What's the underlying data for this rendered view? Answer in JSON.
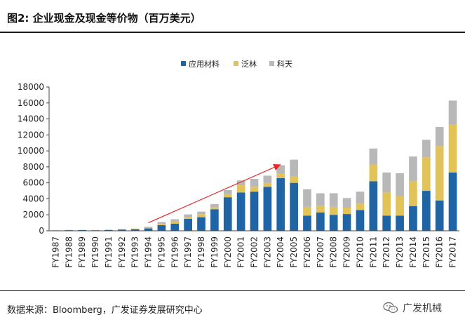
{
  "figure_title": "图2: 企业现金及现金等价物（百万美元）",
  "source_note": "数据来源：Bloomberg，广发证券发展研究中心",
  "watermark": {
    "icon": "wechat-icon",
    "text": "广发机械"
  },
  "colors": {
    "应用材料": "#1f65a6",
    "泛林": "#e2c35a",
    "科天": "#b8b8b8",
    "arrow": "#e52a2a"
  },
  "chart_data": {
    "type": "bar",
    "stacked": true,
    "title": "",
    "xlabel": "",
    "ylabel": "",
    "ylim": [
      0,
      18000
    ],
    "yticks": [
      0,
      2000,
      4000,
      6000,
      8000,
      10000,
      12000,
      14000,
      16000,
      18000
    ],
    "grid": false,
    "legend": "top-center",
    "categories": [
      "FY1987",
      "FY1988",
      "FY1989",
      "FY1990",
      "FY1991",
      "FY1992",
      "FY1993",
      "FY1994",
      "FY1995",
      "FY1996",
      "FY1997",
      "FY1998",
      "FY1999",
      "FY2000",
      "FY2001",
      "FY2002",
      "FY2003",
      "FY2004",
      "FY2005",
      "FY2006",
      "FY2007",
      "FY2008",
      "FY2009",
      "FY2010",
      "FY2011",
      "FY2012",
      "FY2013",
      "FY2014",
      "FY2015",
      "FY2016",
      "FY2017"
    ],
    "series": [
      {
        "name": "应用材料",
        "values": [
          50,
          80,
          90,
          70,
          90,
          150,
          180,
          300,
          700,
          900,
          1500,
          1700,
          2700,
          4200,
          4800,
          4900,
          5500,
          6600,
          6000,
          1900,
          2300,
          2000,
          2100,
          2600,
          6200,
          1900,
          1900,
          3100,
          5000,
          3800,
          7300
        ]
      },
      {
        "name": "泛林",
        "values": [
          10,
          20,
          20,
          20,
          30,
          40,
          50,
          80,
          150,
          250,
          250,
          400,
          250,
          400,
          900,
          600,
          500,
          600,
          800,
          1100,
          800,
          1000,
          800,
          800,
          2100,
          2900,
          2400,
          3100,
          4200,
          6800,
          6000
        ]
      },
      {
        "name": "科天",
        "values": [
          10,
          20,
          20,
          20,
          30,
          40,
          50,
          120,
          250,
          300,
          300,
          300,
          400,
          500,
          600,
          1000,
          900,
          1000,
          2100,
          2200,
          1600,
          1700,
          1200,
          1500,
          2000,
          2500,
          2900,
          3100,
          2200,
          2400,
          3000
        ]
      }
    ],
    "annotations": [
      {
        "type": "arrow",
        "color": "red",
        "from": {
          "x": "FY1994",
          "y": 1000
        },
        "to": {
          "x": "FY2004",
          "y": 8300
        }
      }
    ]
  }
}
